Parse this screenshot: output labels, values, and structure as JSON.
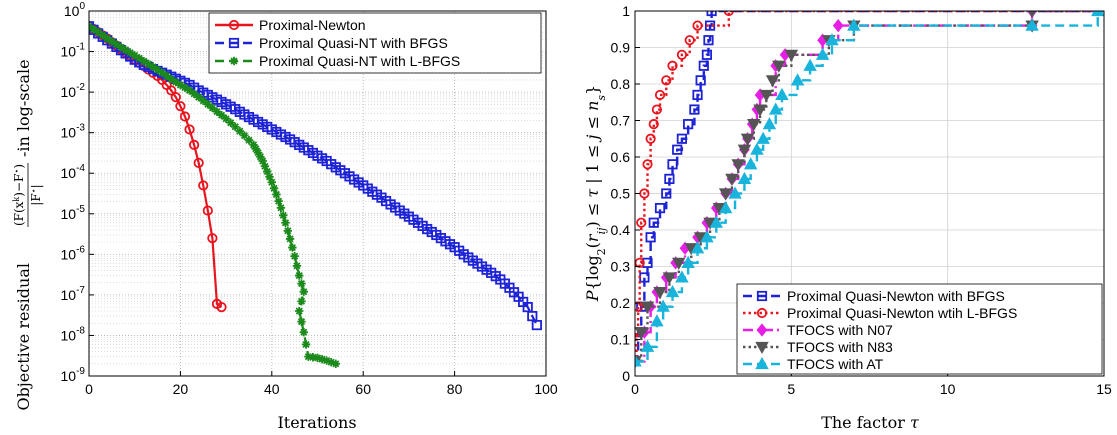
{
  "chart_data": [
    {
      "type": "line",
      "xlabel": "Iterations",
      "ylabel": "Objective residual (F(x^k)−F*)/|F*|-in log-scale",
      "xlim": [
        0,
        100
      ],
      "ylim": [
        1e-09,
        1
      ],
      "yscale": "log",
      "xticks": [
        "0",
        "20",
        "40",
        "60",
        "80",
        "100"
      ],
      "yticks": [
        "10^0",
        "10^-1",
        "10^-2",
        "10^-3",
        "10^-4",
        "10^-5",
        "10^-6",
        "10^-7",
        "10^-8",
        "10^-9"
      ],
      "grid": true,
      "legend_position": "top-right",
      "series": [
        {
          "name": "Proximal-Newton",
          "color": "#e8141e",
          "marker": "circle",
          "line": "solid",
          "points": [
            [
              0,
              0.42
            ],
            [
              1,
              0.36
            ],
            [
              2,
              0.3
            ],
            [
              3,
              0.25
            ],
            [
              4,
              0.21
            ],
            [
              5,
              0.17
            ],
            [
              6,
              0.14
            ],
            [
              7,
              0.115
            ],
            [
              8,
              0.095
            ],
            [
              9,
              0.078
            ],
            [
              10,
              0.064
            ],
            [
              11,
              0.053
            ],
            [
              12,
              0.044
            ],
            [
              13,
              0.036
            ],
            [
              14,
              0.03
            ],
            [
              15,
              0.025
            ],
            [
              16,
              0.02
            ],
            [
              17,
              0.015
            ],
            [
              18,
              0.011
            ],
            [
              19,
              0.0075
            ],
            [
              20,
              0.0045
            ],
            [
              21,
              0.0025
            ],
            [
              22,
              0.0012
            ],
            [
              23,
              0.0005
            ],
            [
              24,
              0.00018
            ],
            [
              25,
              5e-05
            ],
            [
              26,
              1.2e-05
            ],
            [
              27,
              2.5e-06
            ],
            [
              28,
              6e-08
            ],
            [
              29,
              5e-08
            ]
          ]
        },
        {
          "name": "Proximal Quasi-NT with BFGS",
          "color": "#1d22d6",
          "marker": "square",
          "line": "dashed",
          "points": [
            [
              0,
              0.42
            ],
            [
              2,
              0.28
            ],
            [
              4,
              0.19
            ],
            [
              6,
              0.13
            ],
            [
              8,
              0.09
            ],
            [
              10,
              0.063
            ],
            [
              12,
              0.047
            ],
            [
              14,
              0.037
            ],
            [
              16,
              0.03
            ],
            [
              18,
              0.024
            ],
            [
              20,
              0.019
            ],
            [
              22,
              0.015
            ],
            [
              24,
              0.011
            ],
            [
              26,
              0.0085
            ],
            [
              28,
              0.0065
            ],
            [
              30,
              0.005
            ],
            [
              32,
              0.0038
            ],
            [
              34,
              0.0028
            ],
            [
              36,
              0.0021
            ],
            [
              38,
              0.0016
            ],
            [
              40,
              0.0012
            ],
            [
              42,
              0.0009
            ],
            [
              44,
              0.00068
            ],
            [
              46,
              0.0005
            ],
            [
              48,
              0.00037
            ],
            [
              50,
              0.00027
            ],
            [
              52,
              0.0002
            ],
            [
              54,
              0.00014
            ],
            [
              56,
              0.0001
            ],
            [
              58,
              7e-05
            ],
            [
              60,
              5e-05
            ],
            [
              62,
              3.5e-05
            ],
            [
              64,
              2.5e-05
            ],
            [
              66,
              1.7e-05
            ],
            [
              68,
              1.2e-05
            ],
            [
              70,
              8.5e-06
            ],
            [
              72,
              6e-06
            ],
            [
              74,
              4.2e-06
            ],
            [
              76,
              3e-06
            ],
            [
              78,
              2.1e-06
            ],
            [
              80,
              1.5e-06
            ],
            [
              82,
              1e-06
            ],
            [
              84,
              7e-07
            ],
            [
              86,
              5e-07
            ],
            [
              88,
              3.5e-07
            ],
            [
              90,
              2.4e-07
            ],
            [
              92,
              1.5e-07
            ],
            [
              94,
              9e-08
            ],
            [
              96,
              5e-08
            ],
            [
              98,
              1.8e-08
            ]
          ]
        },
        {
          "name": "Proximal Quasi-NT with L-BFGS",
          "color": "#1b8a1b",
          "marker": "asterisk",
          "line": "dashed",
          "points": [
            [
              0,
              0.42
            ],
            [
              2,
              0.3
            ],
            [
              4,
              0.21
            ],
            [
              6,
              0.15
            ],
            [
              8,
              0.11
            ],
            [
              10,
              0.08
            ],
            [
              12,
              0.058
            ],
            [
              14,
              0.042
            ],
            [
              16,
              0.03
            ],
            [
              18,
              0.021
            ],
            [
              20,
              0.015
            ],
            [
              22,
              0.011
            ],
            [
              24,
              0.0075
            ],
            [
              26,
              0.005
            ],
            [
              28,
              0.0033
            ],
            [
              30,
              0.0022
            ],
            [
              32,
              0.0014
            ],
            [
              34,
              0.00085
            ],
            [
              36,
              0.0005
            ],
            [
              37,
              0.00032
            ],
            [
              38,
              0.0002
            ],
            [
              39,
              0.00011
            ],
            [
              40,
              6e-05
            ],
            [
              41,
              3e-05
            ],
            [
              42,
              1.4e-05
            ],
            [
              43,
              6e-06
            ],
            [
              44,
              2.4e-06
            ],
            [
              45,
              9e-07
            ],
            [
              46,
              3e-07
            ],
            [
              47,
              1.2e-07
            ],
            [
              46,
              4e-08
            ],
            [
              47,
              1.2e-08
            ],
            [
              48,
              3e-09
            ],
            [
              50,
              2.8e-09
            ],
            [
              52,
              2.4e-09
            ],
            [
              54,
              2e-09
            ]
          ]
        }
      ]
    },
    {
      "type": "line",
      "xlabel": "The factor τ",
      "ylabel": "P{log2(rij) ≤ τ | 1 ≤ j ≤ ns}",
      "xlim": [
        0,
        15
      ],
      "ylim": [
        0,
        1
      ],
      "xticks": [
        "0",
        "5",
        "10",
        "15"
      ],
      "yticks": [
        "0",
        "0.1",
        "0.2",
        "0.3",
        "0.4",
        "0.5",
        "0.6",
        "0.7",
        "0.8",
        "0.9",
        "1"
      ],
      "grid": true,
      "legend_position": "bottom-right",
      "series": [
        {
          "name": "Proximal Quasi-Newton with BFGS",
          "color": "#1d22d6",
          "marker": "square",
          "line": "dashed",
          "points": [
            [
              0,
              0.04
            ],
            [
              0.1,
              0.12
            ],
            [
              0.2,
              0.19
            ],
            [
              0.3,
              0.27
            ],
            [
              0.4,
              0.31
            ],
            [
              0.5,
              0.38
            ],
            [
              0.6,
              0.42
            ],
            [
              0.8,
              0.46
            ],
            [
              1.0,
              0.5
            ],
            [
              1.1,
              0.54
            ],
            [
              1.2,
              0.58
            ],
            [
              1.35,
              0.62
            ],
            [
              1.5,
              0.65
            ],
            [
              1.7,
              0.69
            ],
            [
              1.9,
              0.73
            ],
            [
              2.0,
              0.77
            ],
            [
              2.1,
              0.81
            ],
            [
              2.2,
              0.85
            ],
            [
              2.3,
              0.88
            ],
            [
              2.35,
              0.92
            ],
            [
              2.4,
              0.96
            ],
            [
              2.45,
              1.0
            ],
            [
              15,
              1.0
            ]
          ]
        },
        {
          "name": "Proximal Quasi-Newton wtih L-BFGS",
          "color": "#e8141e",
          "marker": "circle",
          "line": "dotted",
          "points": [
            [
              0,
              0.04
            ],
            [
              0.05,
              0.12
            ],
            [
              0.1,
              0.19
            ],
            [
              0.15,
              0.31
            ],
            [
              0.2,
              0.42
            ],
            [
              0.3,
              0.5
            ],
            [
              0.4,
              0.58
            ],
            [
              0.5,
              0.65
            ],
            [
              0.6,
              0.69
            ],
            [
              0.7,
              0.73
            ],
            [
              0.8,
              0.77
            ],
            [
              1.0,
              0.81
            ],
            [
              1.2,
              0.85
            ],
            [
              1.5,
              0.88
            ],
            [
              1.75,
              0.92
            ],
            [
              2.0,
              0.96
            ],
            [
              3.0,
              1.0
            ],
            [
              15,
              1.0
            ]
          ]
        },
        {
          "name": "TFOCS with N07",
          "color": "#e61ee6",
          "marker": "diamond",
          "line": "dashdot",
          "points": [
            [
              0,
              0.04
            ],
            [
              0.3,
              0.12
            ],
            [
              0.5,
              0.19
            ],
            [
              0.7,
              0.23
            ],
            [
              1.0,
              0.27
            ],
            [
              1.3,
              0.31
            ],
            [
              1.6,
              0.35
            ],
            [
              2.0,
              0.38
            ],
            [
              2.3,
              0.42
            ],
            [
              2.6,
              0.46
            ],
            [
              2.9,
              0.5
            ],
            [
              3.1,
              0.54
            ],
            [
              3.3,
              0.58
            ],
            [
              3.5,
              0.62
            ],
            [
              3.6,
              0.65
            ],
            [
              3.75,
              0.69
            ],
            [
              3.9,
              0.73
            ],
            [
              4.0,
              0.77
            ],
            [
              4.5,
              0.85
            ],
            [
              4.8,
              0.88
            ],
            [
              6.0,
              0.92
            ],
            [
              6.5,
              0.96
            ],
            [
              12.7,
              0.96
            ],
            [
              12.7,
              1.0
            ],
            [
              15,
              1.0
            ]
          ]
        },
        {
          "name": "TFOCS with N83",
          "color": "#555555",
          "marker": "triangle-down",
          "line": "dotted",
          "points": [
            [
              0,
              0.04
            ],
            [
              0.2,
              0.12
            ],
            [
              0.4,
              0.19
            ],
            [
              0.8,
              0.23
            ],
            [
              1.1,
              0.27
            ],
            [
              1.4,
              0.31
            ],
            [
              1.8,
              0.35
            ],
            [
              2.1,
              0.38
            ],
            [
              2.4,
              0.42
            ],
            [
              2.7,
              0.46
            ],
            [
              2.9,
              0.5
            ],
            [
              3.1,
              0.54
            ],
            [
              3.3,
              0.58
            ],
            [
              3.5,
              0.62
            ],
            [
              3.6,
              0.65
            ],
            [
              3.8,
              0.69
            ],
            [
              4.0,
              0.73
            ],
            [
              4.2,
              0.77
            ],
            [
              4.4,
              0.81
            ],
            [
              4.6,
              0.85
            ],
            [
              5.0,
              0.88
            ],
            [
              6.2,
              0.92
            ],
            [
              7.0,
              0.96
            ],
            [
              12.7,
              0.96
            ],
            [
              12.7,
              1.0
            ],
            [
              15,
              1.0
            ]
          ]
        },
        {
          "name": "TFOCS with AT",
          "color": "#19b4dc",
          "marker": "triangle-up",
          "line": "dashed",
          "points": [
            [
              0,
              0.04
            ],
            [
              0.4,
              0.08
            ],
            [
              0.7,
              0.15
            ],
            [
              0.9,
              0.19
            ],
            [
              1.2,
              0.23
            ],
            [
              1.5,
              0.27
            ],
            [
              1.7,
              0.31
            ],
            [
              2.0,
              0.35
            ],
            [
              2.3,
              0.38
            ],
            [
              2.6,
              0.42
            ],
            [
              2.9,
              0.46
            ],
            [
              3.2,
              0.5
            ],
            [
              3.5,
              0.54
            ],
            [
              3.7,
              0.58
            ],
            [
              3.9,
              0.62
            ],
            [
              4.1,
              0.65
            ],
            [
              4.3,
              0.69
            ],
            [
              4.5,
              0.73
            ],
            [
              4.7,
              0.77
            ],
            [
              5.2,
              0.81
            ],
            [
              5.6,
              0.85
            ],
            [
              6.0,
              0.88
            ],
            [
              6.3,
              0.92
            ],
            [
              7.0,
              0.96
            ],
            [
              12.7,
              0.96
            ],
            [
              14.8,
              1.0
            ],
            [
              15,
              1.0
            ]
          ]
        }
      ]
    }
  ]
}
